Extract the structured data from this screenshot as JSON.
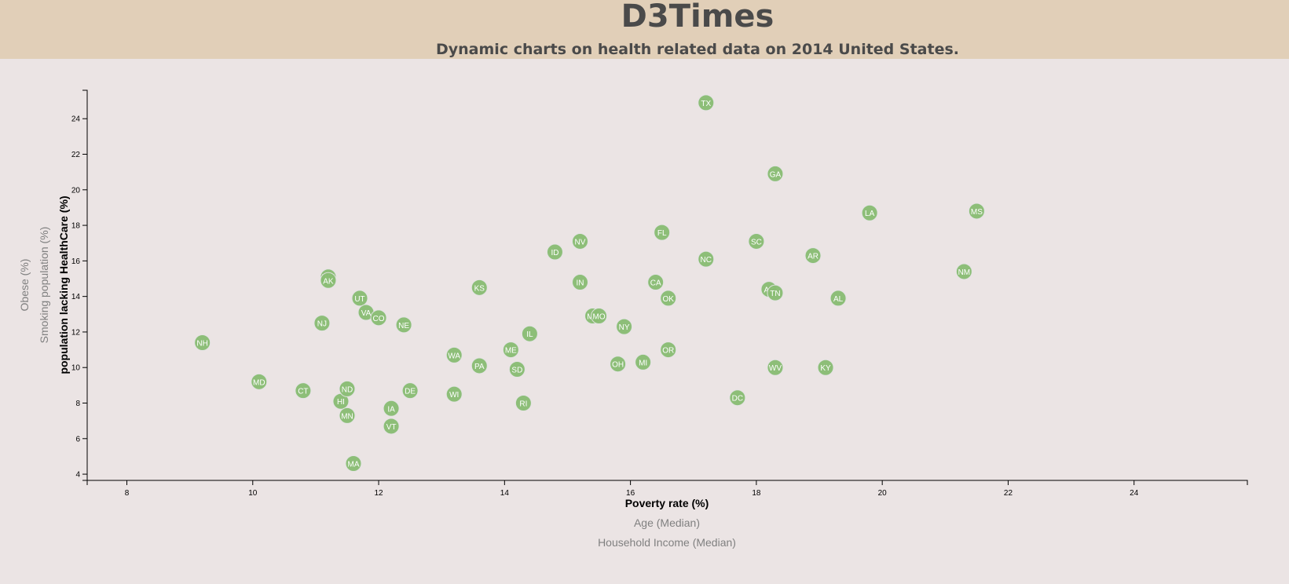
{
  "header": {
    "title": "D3Times",
    "subtitle": "Dynamic charts on health related data on 2014 United States."
  },
  "colors": {
    "header_bg": "#e1cfb8",
    "page_bg": "#ebe4e4",
    "circle_fill": "#89bd73",
    "circle_stroke": "#e3e3e3",
    "label_text": "#ffffff"
  },
  "chart_data": {
    "type": "scatter",
    "xlabel": "Poverty rate (%)",
    "ylabel": "population lacking HealthCare (%)",
    "x_axis_options": [
      {
        "label": "Poverty rate (%)",
        "active": true
      },
      {
        "label": "Age (Median)",
        "active": false
      },
      {
        "label": "Household Income (Median)",
        "active": false
      }
    ],
    "y_axis_options": [
      {
        "label": "population lacking HealthCare (%)",
        "active": true
      },
      {
        "label": "Smoking population (%)",
        "active": false
      },
      {
        "label": "Obese (%)",
        "active": false
      }
    ],
    "xlim": [
      7.37,
      25.8
    ],
    "ylim": [
      3.65,
      25.6
    ],
    "x_ticks": [
      8,
      10,
      12,
      14,
      16,
      18,
      20,
      22,
      24
    ],
    "y_ticks": [
      4,
      6,
      8,
      10,
      12,
      14,
      16,
      18,
      20,
      22,
      24
    ],
    "grid": false,
    "points": [
      {
        "abbr": "NH",
        "x": 9.2,
        "y": 11.4
      },
      {
        "abbr": "MD",
        "x": 10.1,
        "y": 9.2
      },
      {
        "abbr": "CT",
        "x": 10.8,
        "y": 8.7
      },
      {
        "abbr": "NJ",
        "x": 11.1,
        "y": 12.5
      },
      {
        "abbr": "WY",
        "x": 11.2,
        "y": 15.1
      },
      {
        "abbr": "AK",
        "x": 11.2,
        "y": 14.9
      },
      {
        "abbr": "HI",
        "x": 11.4,
        "y": 8.1
      },
      {
        "abbr": "ND",
        "x": 11.5,
        "y": 8.8
      },
      {
        "abbr": "MN",
        "x": 11.5,
        "y": 7.3
      },
      {
        "abbr": "MA",
        "x": 11.6,
        "y": 4.6
      },
      {
        "abbr": "UT",
        "x": 11.7,
        "y": 13.9
      },
      {
        "abbr": "VA",
        "x": 11.8,
        "y": 13.1
      },
      {
        "abbr": "CO",
        "x": 12.0,
        "y": 12.8
      },
      {
        "abbr": "IA",
        "x": 12.2,
        "y": 7.7
      },
      {
        "abbr": "VT",
        "x": 12.2,
        "y": 6.7
      },
      {
        "abbr": "NE",
        "x": 12.4,
        "y": 12.4
      },
      {
        "abbr": "DE",
        "x": 12.5,
        "y": 8.7
      },
      {
        "abbr": "WA",
        "x": 13.2,
        "y": 10.7
      },
      {
        "abbr": "WI",
        "x": 13.2,
        "y": 8.5
      },
      {
        "abbr": "KS",
        "x": 13.6,
        "y": 14.5
      },
      {
        "abbr": "PA",
        "x": 13.6,
        "y": 10.1
      },
      {
        "abbr": "ME",
        "x": 14.1,
        "y": 11.0
      },
      {
        "abbr": "SD",
        "x": 14.2,
        "y": 9.9
      },
      {
        "abbr": "RI",
        "x": 14.3,
        "y": 8.0
      },
      {
        "abbr": "IL",
        "x": 14.4,
        "y": 11.9
      },
      {
        "abbr": "ID",
        "x": 14.8,
        "y": 16.5
      },
      {
        "abbr": "NV",
        "x": 15.2,
        "y": 17.1
      },
      {
        "abbr": "IN",
        "x": 15.2,
        "y": 14.8
      },
      {
        "abbr": "MT",
        "x": 15.4,
        "y": 12.9
      },
      {
        "abbr": "MO",
        "x": 15.5,
        "y": 12.9
      },
      {
        "abbr": "OH",
        "x": 15.8,
        "y": 10.2
      },
      {
        "abbr": "NY",
        "x": 15.9,
        "y": 12.3
      },
      {
        "abbr": "MI",
        "x": 16.2,
        "y": 10.3
      },
      {
        "abbr": "CA",
        "x": 16.4,
        "y": 14.8
      },
      {
        "abbr": "FL",
        "x": 16.5,
        "y": 17.6
      },
      {
        "abbr": "OK",
        "x": 16.6,
        "y": 13.9
      },
      {
        "abbr": "OR",
        "x": 16.6,
        "y": 11.0
      },
      {
        "abbr": "TX",
        "x": 17.2,
        "y": 24.9
      },
      {
        "abbr": "NC",
        "x": 17.2,
        "y": 16.1
      },
      {
        "abbr": "DC",
        "x": 17.7,
        "y": 8.3
      },
      {
        "abbr": "SC",
        "x": 18.0,
        "y": 17.1
      },
      {
        "abbr": "AZ",
        "x": 18.2,
        "y": 14.4
      },
      {
        "abbr": "GA",
        "x": 18.3,
        "y": 20.9
      },
      {
        "abbr": "TN",
        "x": 18.3,
        "y": 14.2
      },
      {
        "abbr": "WV",
        "x": 18.3,
        "y": 10.0
      },
      {
        "abbr": "AR",
        "x": 18.9,
        "y": 16.3
      },
      {
        "abbr": "KY",
        "x": 19.1,
        "y": 10.0
      },
      {
        "abbr": "AL",
        "x": 19.3,
        "y": 13.9
      },
      {
        "abbr": "LA",
        "x": 19.8,
        "y": 18.7
      },
      {
        "abbr": "NM",
        "x": 21.3,
        "y": 15.4
      },
      {
        "abbr": "MS",
        "x": 21.5,
        "y": 18.8
      }
    ]
  }
}
